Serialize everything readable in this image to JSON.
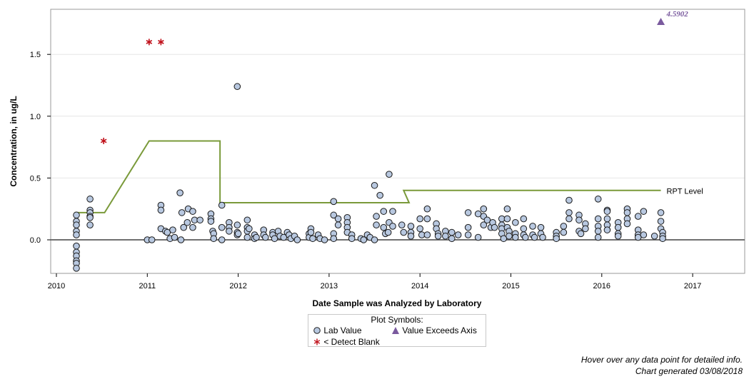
{
  "chart_data": {
    "type": "scatter",
    "xlabel": "Date Sample was Analyzed by Laboratory",
    "ylabel": "Concentration, in ug/L",
    "xlim": [
      2010,
      2017
    ],
    "xticks": [
      "2010",
      "2011",
      "2012",
      "2013",
      "2014",
      "2015",
      "2016",
      "2017"
    ],
    "ylim": [
      -0.22,
      1.85
    ],
    "yticks": [
      "0.0",
      "0.5",
      "1.0",
      "1.5"
    ],
    "grid": "horizontal",
    "legend": {
      "title": "Plot Symbols:",
      "placement": "bottom-center",
      "entries": [
        {
          "label": "Lab Value",
          "symbol": "circle"
        },
        {
          "label": "Value Exceeds Axis",
          "symbol": "triangle"
        },
        {
          "label": "< Detect Blank",
          "symbol": "star"
        }
      ]
    },
    "rpt_level": {
      "label": "RPT Level",
      "color": "#7a9a3a",
      "points": [
        [
          2010.2,
          0.22
        ],
        [
          2010.53,
          0.22
        ],
        [
          2011.02,
          0.8
        ],
        [
          2011.8,
          0.8
        ],
        [
          2011.8,
          0.3
        ],
        [
          2013.88,
          0.3
        ],
        [
          2013.82,
          0.4
        ],
        [
          2016.65,
          0.4
        ]
      ]
    },
    "exceeds_axis": [
      {
        "x": 2016.65,
        "y": 4.5902,
        "label": "4.5902"
      }
    ],
    "detect_blank": [
      [
        2011.02,
        1.6
      ],
      [
        2011.15,
        1.6
      ],
      [
        2010.52,
        0.8
      ]
    ],
    "lab_values": [
      [
        2010.22,
        0.2
      ],
      [
        2010.22,
        0.15
      ],
      [
        2010.22,
        0.12
      ],
      [
        2010.22,
        0.07
      ],
      [
        2010.22,
        0.04
      ],
      [
        2010.22,
        -0.05
      ],
      [
        2010.22,
        -0.1
      ],
      [
        2010.22,
        -0.13
      ],
      [
        2010.22,
        -0.17
      ],
      [
        2010.22,
        -0.19
      ],
      [
        2010.22,
        -0.23
      ],
      [
        2010.37,
        0.33
      ],
      [
        2010.37,
        0.24
      ],
      [
        2010.37,
        0.22
      ],
      [
        2010.37,
        0.19
      ],
      [
        2010.37,
        0.18
      ],
      [
        2010.37,
        0.12
      ],
      [
        2011.0,
        0.0
      ],
      [
        2011.05,
        0.0
      ],
      [
        2011.15,
        0.28
      ],
      [
        2011.15,
        0.24
      ],
      [
        2011.15,
        0.09
      ],
      [
        2011.2,
        0.07
      ],
      [
        2011.22,
        0.06
      ],
      [
        2011.25,
        0.01
      ],
      [
        2011.28,
        0.08
      ],
      [
        2011.3,
        0.02
      ],
      [
        2011.36,
        0.38
      ],
      [
        2011.38,
        0.22
      ],
      [
        2011.4,
        0.1
      ],
      [
        2011.45,
        0.25
      ],
      [
        2011.44,
        0.14
      ],
      [
        2011.5,
        0.23
      ],
      [
        2011.5,
        0.1
      ],
      [
        2011.52,
        0.16
      ],
      [
        2011.58,
        0.16
      ],
      [
        2011.37,
        0.0
      ],
      [
        2011.7,
        0.21
      ],
      [
        2011.7,
        0.17
      ],
      [
        2011.7,
        0.15
      ],
      [
        2011.72,
        0.07
      ],
      [
        2011.73,
        0.05
      ],
      [
        2011.73,
        0.01
      ],
      [
        2011.82,
        0.28
      ],
      [
        2011.82,
        0.1
      ],
      [
        2011.82,
        0.0
      ],
      [
        2011.9,
        0.14
      ],
      [
        2011.9,
        0.1
      ],
      [
        2011.9,
        0.07
      ],
      [
        2011.99,
        1.24
      ],
      [
        2011.99,
        0.12
      ],
      [
        2011.99,
        0.06
      ],
      [
        2011.99,
        0.04
      ],
      [
        2012.0,
        0.05
      ],
      [
        2012.1,
        0.16
      ],
      [
        2012.1,
        0.1
      ],
      [
        2012.1,
        0.07
      ],
      [
        2012.12,
        0.09
      ],
      [
        2012.1,
        0.02
      ],
      [
        2012.18,
        0.04
      ],
      [
        2012.18,
        0.01
      ],
      [
        2012.2,
        0.02
      ],
      [
        2012.28,
        0.08
      ],
      [
        2012.28,
        0.04
      ],
      [
        2012.3,
        0.02
      ],
      [
        2012.38,
        0.06
      ],
      [
        2012.38,
        0.04
      ],
      [
        2012.4,
        0.01
      ],
      [
        2012.44,
        0.07
      ],
      [
        2012.46,
        0.03
      ],
      [
        2012.5,
        0.02
      ],
      [
        2012.54,
        0.06
      ],
      [
        2012.56,
        0.04
      ],
      [
        2012.58,
        0.01
      ],
      [
        2012.62,
        0.03
      ],
      [
        2012.65,
        0.0
      ],
      [
        2012.78,
        0.05
      ],
      [
        2012.78,
        0.02
      ],
      [
        2012.8,
        0.09
      ],
      [
        2012.8,
        0.06
      ],
      [
        2012.82,
        0.01
      ],
      [
        2012.88,
        0.04
      ],
      [
        2012.9,
        0.01
      ],
      [
        2012.95,
        0.0
      ],
      [
        2013.05,
        0.31
      ],
      [
        2013.05,
        0.2
      ],
      [
        2013.05,
        0.05
      ],
      [
        2013.05,
        0.01
      ],
      [
        2013.1,
        0.17
      ],
      [
        2013.1,
        0.12
      ],
      [
        2013.2,
        0.18
      ],
      [
        2013.2,
        0.14
      ],
      [
        2013.2,
        0.1
      ],
      [
        2013.2,
        0.06
      ],
      [
        2013.25,
        0.04
      ],
      [
        2013.25,
        0.01
      ],
      [
        2013.35,
        0.01
      ],
      [
        2013.38,
        0.0
      ],
      [
        2013.42,
        0.04
      ],
      [
        2013.45,
        0.02
      ],
      [
        2013.5,
        0.0
      ],
      [
        2013.5,
        0.44
      ],
      [
        2013.52,
        0.19
      ],
      [
        2013.52,
        0.12
      ],
      [
        2013.56,
        0.36
      ],
      [
        2013.6,
        0.23
      ],
      [
        2013.6,
        0.1
      ],
      [
        2013.62,
        0.05
      ],
      [
        2013.66,
        0.53
      ],
      [
        2013.66,
        0.14
      ],
      [
        2013.7,
        0.23
      ],
      [
        2013.7,
        0.11
      ],
      [
        2013.65,
        0.06
      ],
      [
        2013.8,
        0.12
      ],
      [
        2013.82,
        0.06
      ],
      [
        2013.9,
        0.11
      ],
      [
        2013.9,
        0.06
      ],
      [
        2013.9,
        0.03
      ],
      [
        2014.0,
        0.17
      ],
      [
        2014.0,
        0.09
      ],
      [
        2014.02,
        0.04
      ],
      [
        2014.08,
        0.25
      ],
      [
        2014.08,
        0.17
      ],
      [
        2014.08,
        0.04
      ],
      [
        2014.18,
        0.13
      ],
      [
        2014.18,
        0.09
      ],
      [
        2014.2,
        0.05
      ],
      [
        2014.2,
        0.03
      ],
      [
        2014.28,
        0.07
      ],
      [
        2014.28,
        0.03
      ],
      [
        2014.35,
        0.06
      ],
      [
        2014.35,
        0.01
      ],
      [
        2014.42,
        0.04
      ],
      [
        2014.53,
        0.22
      ],
      [
        2014.53,
        0.1
      ],
      [
        2014.53,
        0.04
      ],
      [
        2014.64,
        0.21
      ],
      [
        2014.64,
        0.02
      ],
      [
        2014.7,
        0.25
      ],
      [
        2014.7,
        0.19
      ],
      [
        2014.7,
        0.12
      ],
      [
        2014.74,
        0.16
      ],
      [
        2014.78,
        0.1
      ],
      [
        2014.8,
        0.14
      ],
      [
        2014.82,
        0.1
      ],
      [
        2014.9,
        0.17
      ],
      [
        2014.9,
        0.12
      ],
      [
        2014.9,
        0.09
      ],
      [
        2014.9,
        0.05
      ],
      [
        2014.92,
        0.01
      ],
      [
        2014.96,
        0.25
      ],
      [
        2014.96,
        0.17
      ],
      [
        2014.96,
        0.1
      ],
      [
        2014.98,
        0.07
      ],
      [
        2014.98,
        0.03
      ],
      [
        2015.05,
        0.14
      ],
      [
        2015.05,
        0.05
      ],
      [
        2015.05,
        0.02
      ],
      [
        2015.14,
        0.17
      ],
      [
        2015.14,
        0.09
      ],
      [
        2015.14,
        0.04
      ],
      [
        2015.16,
        0.02
      ],
      [
        2015.24,
        0.11
      ],
      [
        2015.24,
        0.04
      ],
      [
        2015.26,
        0.02
      ],
      [
        2015.33,
        0.1
      ],
      [
        2015.33,
        0.05
      ],
      [
        2015.35,
        0.02
      ],
      [
        2015.5,
        0.06
      ],
      [
        2015.5,
        0.03
      ],
      [
        2015.5,
        0.01
      ],
      [
        2015.58,
        0.11
      ],
      [
        2015.58,
        0.06
      ],
      [
        2015.64,
        0.32
      ],
      [
        2015.64,
        0.22
      ],
      [
        2015.64,
        0.17
      ],
      [
        2015.75,
        0.2
      ],
      [
        2015.75,
        0.16
      ],
      [
        2015.75,
        0.07
      ],
      [
        2015.77,
        0.05
      ],
      [
        2015.82,
        0.13
      ],
      [
        2015.82,
        0.09
      ],
      [
        2015.96,
        0.33
      ],
      [
        2015.96,
        0.17
      ],
      [
        2015.96,
        0.11
      ],
      [
        2015.96,
        0.07
      ],
      [
        2015.96,
        0.02
      ],
      [
        2016.06,
        0.24
      ],
      [
        2016.06,
        0.23
      ],
      [
        2016.06,
        0.17
      ],
      [
        2016.06,
        0.12
      ],
      [
        2016.06,
        0.08
      ],
      [
        2016.18,
        0.14
      ],
      [
        2016.18,
        0.1
      ],
      [
        2016.18,
        0.05
      ],
      [
        2016.18,
        0.03
      ],
      [
        2016.28,
        0.25
      ],
      [
        2016.28,
        0.22
      ],
      [
        2016.28,
        0.17
      ],
      [
        2016.28,
        0.13
      ],
      [
        2016.4,
        0.19
      ],
      [
        2016.4,
        0.08
      ],
      [
        2016.4,
        0.04
      ],
      [
        2016.4,
        0.02
      ],
      [
        2016.46,
        0.23
      ],
      [
        2016.46,
        0.04
      ],
      [
        2016.58,
        0.03
      ],
      [
        2016.65,
        0.22
      ],
      [
        2016.65,
        0.15
      ],
      [
        2016.65,
        0.09
      ],
      [
        2016.67,
        0.06
      ],
      [
        2016.67,
        0.03
      ],
      [
        2016.67,
        0.01
      ]
    ]
  },
  "footer": {
    "hover_note": "Hover over any data point for detailed info.",
    "generated": "Chart generated 03/08/2018"
  },
  "colors": {
    "marker_fill": "#b8c8e0",
    "detect_blank": "#c0101a",
    "exceeds": "#7a5a9e",
    "rpt_line": "#7a9a3a",
    "zero_line": "#707070",
    "grid": "#e6e6e6"
  }
}
